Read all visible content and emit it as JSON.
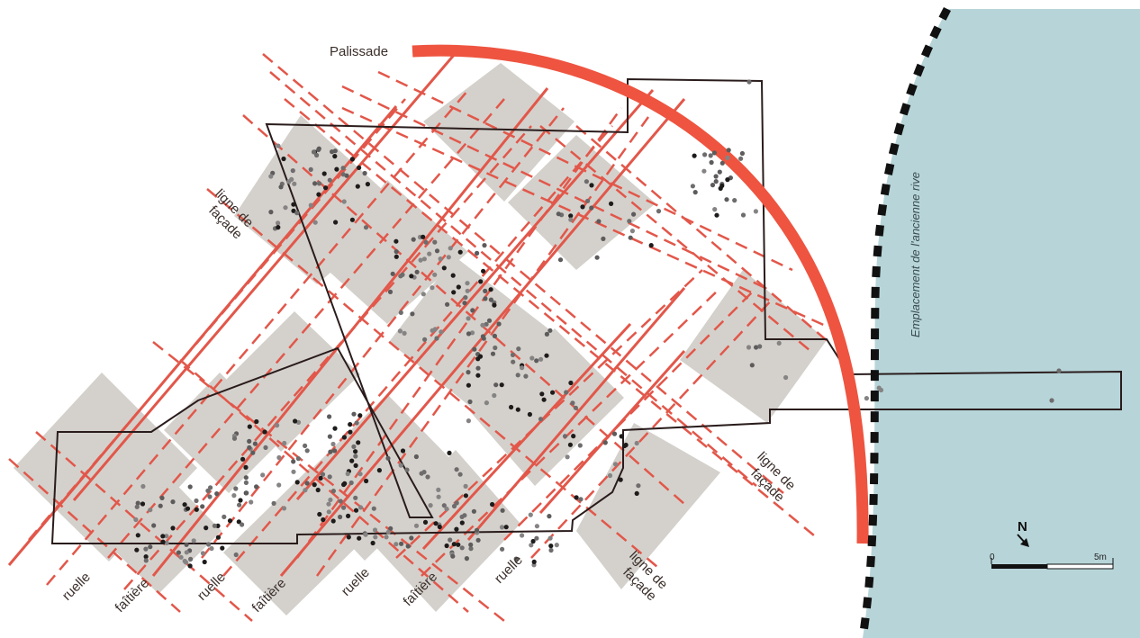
{
  "map": {
    "labels": {
      "palissade": "Palissade",
      "facade_upper_1": "ligne de",
      "facade_upper_2": "façade",
      "facade_right_1": "ligne de",
      "facade_right_2": "façade",
      "facade_bottom_1": "ligne de",
      "facade_bottom_2": "façade",
      "ruelle": "ruelle",
      "faitiere": "faîtière",
      "shore": "Emplacement de l'ancienne rive"
    },
    "bottom_sequence": [
      "ruelle",
      "faîtière",
      "ruelle",
      "faîtière",
      "ruelle",
      "faîtière",
      "ruelle",
      "ligne de façade"
    ],
    "north": "N",
    "scale": {
      "start": "0",
      "end": "5m"
    },
    "colors": {
      "water": "#b7d5d9",
      "house": "#d4d1cc",
      "line_red": "#e2574a",
      "palissade": "#ee5440",
      "outline": "#2a1c1c",
      "shore_dash": "#111111"
    }
  }
}
